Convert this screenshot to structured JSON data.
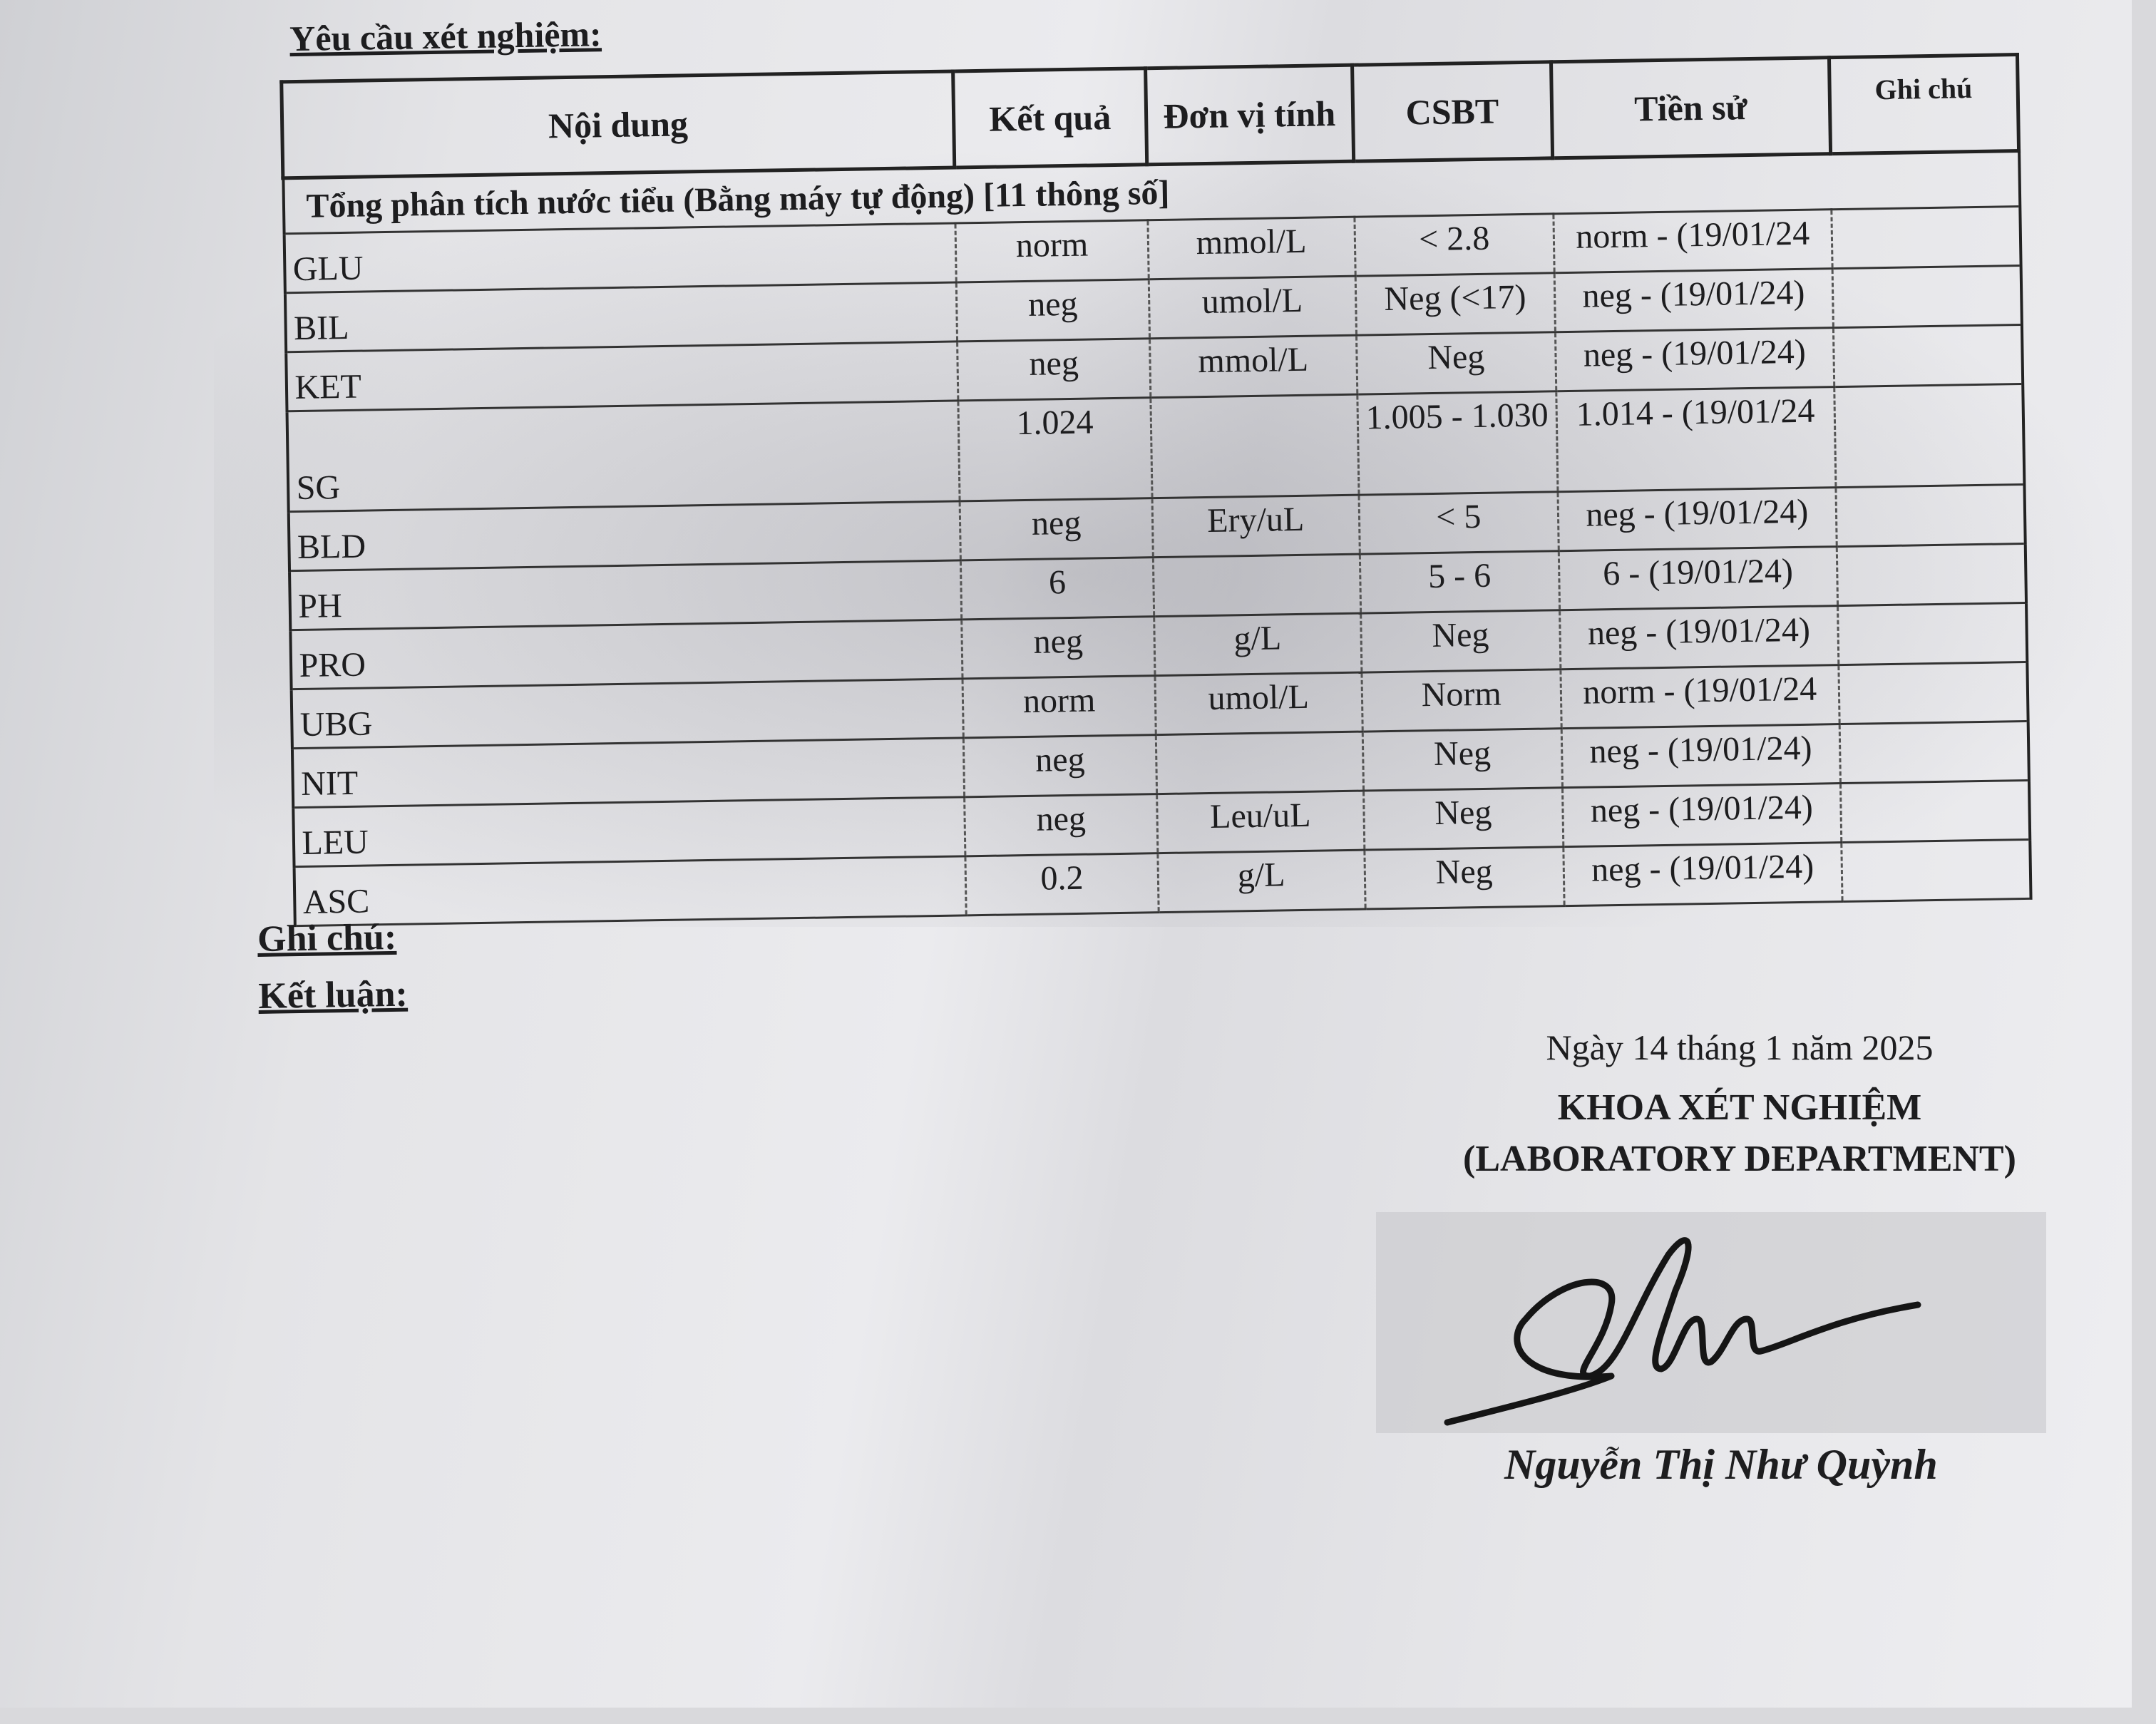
{
  "title": "Yêu cầu xét nghiệm:",
  "table": {
    "headers": [
      "Nội dung",
      "Kết quả",
      "Đơn vị tính",
      "CSBT",
      "Tiền sử",
      "Ghi chú"
    ],
    "section": "Tổng phân tích nước tiểu (Bằng máy tự động) [11 thông số]",
    "rows": [
      {
        "name": "GLU",
        "result": "norm",
        "unit": "mmol/L",
        "ref": "< 2.8",
        "history": "norm - (19/01/24",
        "note": ""
      },
      {
        "name": "BIL",
        "result": "neg",
        "unit": "umol/L",
        "ref": "Neg (<17)",
        "history": "neg - (19/01/24)",
        "note": ""
      },
      {
        "name": "KET",
        "result": "neg",
        "unit": "mmol/L",
        "ref": "Neg",
        "history": "neg - (19/01/24)",
        "note": ""
      },
      {
        "name": "SG",
        "result": "1.024",
        "unit": "",
        "ref": "1.005 - 1.030",
        "history": "1.014 - (19/01/24",
        "note": ""
      },
      {
        "name": "BLD",
        "result": "neg",
        "unit": "Ery/uL",
        "ref": "< 5",
        "history": "neg - (19/01/24)",
        "note": ""
      },
      {
        "name": "PH",
        "result": "6",
        "unit": "",
        "ref": "5 - 6",
        "history": "6 - (19/01/24)",
        "note": ""
      },
      {
        "name": "PRO",
        "result": "neg",
        "unit": "g/L",
        "ref": "Neg",
        "history": "neg - (19/01/24)",
        "note": ""
      },
      {
        "name": "UBG",
        "result": "norm",
        "unit": "umol/L",
        "ref": "Norm",
        "history": "norm - (19/01/24",
        "note": ""
      },
      {
        "name": "NIT",
        "result": "neg",
        "unit": "",
        "ref": "Neg",
        "history": "neg - (19/01/24)",
        "note": ""
      },
      {
        "name": "LEU",
        "result": "neg",
        "unit": "Leu/uL",
        "ref": "Neg",
        "history": "neg - (19/01/24)",
        "note": ""
      },
      {
        "name": "ASC",
        "result": "0.2",
        "unit": "g/L",
        "ref": "Neg",
        "history": "neg - (19/01/24)",
        "note": ""
      }
    ]
  },
  "notes_label": "Ghi chú:",
  "conclusion_label": "Kết luận:",
  "date": "Ngày 14 tháng 1 năm 2025",
  "department": "KHOA XÉT NGHIỆM",
  "department_en": "(LABORATORY DEPARTMENT)",
  "signature": "Nhu",
  "signer": "Nguyễn Thị Như Quỳnh"
}
